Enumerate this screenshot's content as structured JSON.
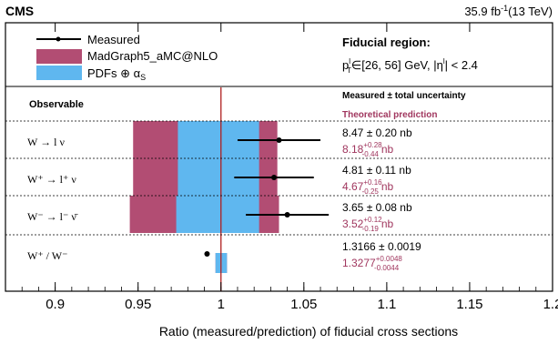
{
  "chart_data": {
    "type": "summary-plot",
    "experiment": "CMS",
    "luminosity": {
      "value": "35.9 fb",
      "exp": "-1",
      "energy": "(13 TeV)"
    },
    "legend": [
      {
        "name": "Measured",
        "color": "#000000",
        "kind": "line-point"
      },
      {
        "name": "MadGraph5_aMC@NLO",
        "color": "#b24d73",
        "kind": "box"
      },
      {
        "name": "PDFs ⊕ α",
        "sub": "S",
        "color": "#5fb7ef",
        "kind": "box"
      }
    ],
    "fiducial": {
      "title": "Fiducial region:",
      "p": "p",
      "sup": "l",
      "sub": "T",
      "range": "∈[26,  56] GeV, |η",
      "sup2": "l",
      "tail": "| < 2.4"
    },
    "header": {
      "observable": "Observable",
      "measured": "Measured ± total uncertainty",
      "theory": "Theoretical prediction"
    },
    "xlabel": "Ratio (measured/prediction) of fiducial cross sections",
    "xlim": [
      0.87,
      1.2
    ],
    "xticks": [
      "0.9",
      "0.95",
      "1",
      "1.05",
      "1.1",
      "1.15",
      "1.2"
    ],
    "xtick_values": [
      0.9,
      0.95,
      1.0,
      1.05,
      1.1,
      1.15,
      1.2
    ],
    "reference_line": 1.0,
    "colors": {
      "theory": "#b24d73",
      "pdf": "#5fb7ef",
      "refline": "#b01e1e"
    },
    "rows": [
      {
        "observable": "W → l ν",
        "measured_text": "8.47 ± 0.20 nb",
        "theory_value": "8.18",
        "theory_up": "+0.28",
        "theory_down": "-0.44",
        "theory_unit": "nb",
        "ratio": 1.035,
        "ratio_err": 0.025,
        "theory_band": [
          0.947,
          1.034
        ],
        "pdf_band": [
          0.974,
          1.023
        ]
      },
      {
        "observable": "W⁺ → l⁺ ν",
        "measured_text": "4.81 ± 0.11 nb",
        "theory_value": "4.67",
        "theory_up": "+0.16",
        "theory_down": "-0.25",
        "theory_unit": "nb",
        "ratio": 1.032,
        "ratio_err": 0.024,
        "theory_band": [
          0.947,
          1.034
        ],
        "pdf_band": [
          0.974,
          1.023
        ]
      },
      {
        "observable": "W⁻ → l⁻ ν̄",
        "measured_text": "3.65 ± 0.08 nb",
        "theory_value": "3.52",
        "theory_up": "+0.12",
        "theory_down": "-0.19",
        "theory_unit": "nb",
        "ratio": 1.04,
        "ratio_err": 0.025,
        "theory_band": [
          0.945,
          1.035
        ],
        "pdf_band": [
          0.973,
          1.023
        ]
      },
      {
        "observable": "W⁺ / W⁻",
        "measured_text": "1.3166 ± 0.0019",
        "theory_value": "1.3277",
        "theory_up": "+0.0048",
        "theory_down": "-0.0044",
        "theory_unit": "",
        "ratio": 0.9916,
        "ratio_err": 0.0014,
        "theory_band": [
          0.9967,
          1.0036
        ],
        "pdf_band": [
          0.9967,
          1.0036
        ]
      }
    ]
  }
}
